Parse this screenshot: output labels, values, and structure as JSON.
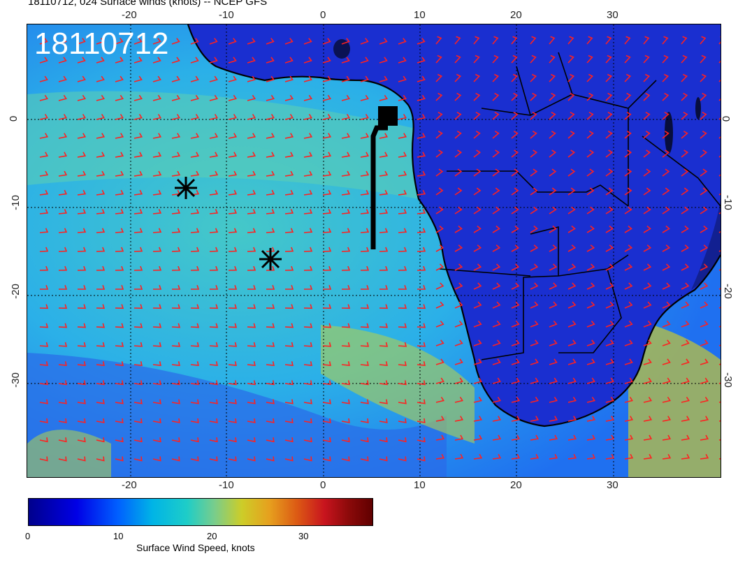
{
  "header": {
    "title": "18110712, 024 Surface winds (knots) -- NCEP GFS"
  },
  "map": {
    "stamp": "18110712",
    "ticks_top": [
      "-20",
      "-10",
      "0",
      "10",
      "20",
      "30"
    ],
    "ticks_bottom": [
      "-20",
      "-10",
      "0",
      "10",
      "20",
      "30"
    ],
    "ticks_left": [
      "0",
      "-10",
      "-20",
      "-30"
    ],
    "ticks_right": [
      "0",
      "-10",
      "-20",
      "-30"
    ],
    "markers": [
      {
        "name": "asterisk",
        "lon": -14.5,
        "lat": -8.5
      },
      {
        "name": "asterisk",
        "lon": -5.5,
        "lat": -16.5
      },
      {
        "name": "square",
        "lon": 6.6,
        "lat": 0.2
      }
    ],
    "colors": {
      "barb": "#ff2020",
      "land": "#1a2fd0",
      "ocean": "#2bb5e8",
      "coast": "#000000"
    }
  },
  "colorbar": {
    "ticks": [
      "0",
      "10",
      "20",
      "30"
    ],
    "label": "Surface Wind Speed, knots"
  }
}
